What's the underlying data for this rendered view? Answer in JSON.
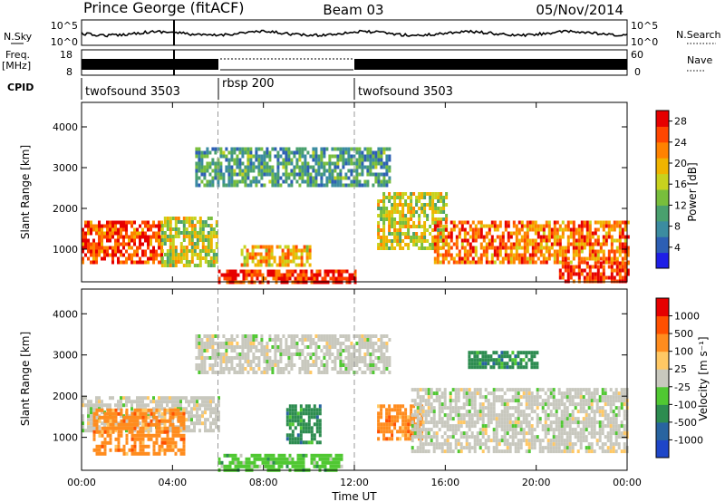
{
  "header": {
    "station": "Prince George (fitACF)",
    "beam": "Beam 03",
    "date": "05/Nov/2014"
  },
  "top_panels": {
    "nsky_label": "N.Sky",
    "nsky_ticks": [
      "10^5",
      "10^0"
    ],
    "nsearch_label": "N.Search",
    "nsearch_ticks": [
      "10^5",
      "10^0"
    ],
    "freq_label": "Freq.",
    "freq_unit": "[MHz]",
    "freq_ticks": [
      "18",
      "8"
    ],
    "nave_label": "Nave",
    "nave_ticks": [
      "60",
      "0"
    ],
    "cpid_label": "CPID",
    "cpid_segments": [
      {
        "name": "twofsound 3503",
        "start_hour": 0,
        "end_hour": 6
      },
      {
        "name": "rbsp 200",
        "start_hour": 6,
        "end_hour": 12
      },
      {
        "name": "twofsound 3503",
        "start_hour": 12,
        "end_hour": 24
      }
    ]
  },
  "chart_data": [
    {
      "type": "heatmap",
      "name": "power",
      "ylabel": "Slant Range [km]",
      "yticks": [
        1000,
        2000,
        3000,
        4000
      ],
      "ylim": [
        200,
        4600
      ],
      "xlim_hours": [
        0,
        24
      ],
      "colorbar": {
        "label": "Power [dB]",
        "ticks": [
          "4",
          "8",
          "12",
          "16",
          "20",
          "24",
          "28"
        ],
        "range": [
          0,
          30
        ],
        "colors": [
          "#1e1ee6",
          "#2d5fb4",
          "#3c8ca0",
          "#4aa06e",
          "#78be3c",
          "#c8d21e",
          "#f0b400",
          "#ff8200",
          "#ff4600",
          "#e60000"
        ]
      },
      "bands": [
        {
          "t0": 0.0,
          "t1": 3.5,
          "r0": 700,
          "r1": 1700,
          "level": 0.9
        },
        {
          "t0": 3.5,
          "t1": 6.0,
          "r0": 600,
          "r1": 1800,
          "level": 0.55
        },
        {
          "t0": 5.0,
          "t1": 13.5,
          "r0": 2600,
          "r1": 3500,
          "level": 0.3
        },
        {
          "t0": 6.0,
          "t1": 12.0,
          "r0": 200,
          "r1": 500,
          "level": 0.95
        },
        {
          "t0": 7.0,
          "t1": 10.0,
          "r0": 600,
          "r1": 1100,
          "level": 0.7
        },
        {
          "t0": 13.0,
          "t1": 16.0,
          "r0": 1000,
          "r1": 2400,
          "level": 0.55
        },
        {
          "t0": 15.5,
          "t1": 24.0,
          "r0": 700,
          "r1": 1700,
          "level": 0.8
        },
        {
          "t0": 21.0,
          "t1": 24.0,
          "r0": 250,
          "r1": 700,
          "level": 0.95
        }
      ]
    },
    {
      "type": "heatmap",
      "name": "velocity",
      "ylabel": "Slant Range [km]",
      "yticks": [
        1000,
        2000,
        3000,
        4000
      ],
      "ylim": [
        200,
        4600
      ],
      "xlim_hours": [
        0,
        24
      ],
      "colorbar": {
        "label": "Velocity [m s⁻¹]",
        "ticks": [
          "1000",
          "500",
          "100",
          "25",
          "-25",
          "-100",
          "-500",
          "-1000"
        ],
        "colors": [
          "#1e46c8",
          "#2864a0",
          "#2d8c50",
          "#50c832",
          "#c8c8be",
          "#ffc864",
          "#ff8c1e",
          "#ff5000",
          "#e60000"
        ]
      },
      "bands": [
        {
          "t0": 0.0,
          "t1": 6.0,
          "r0": 1200,
          "r1": 2000,
          "color_index": 4
        },
        {
          "t0": 0.5,
          "t1": 4.5,
          "r0": 600,
          "r1": 1700,
          "color_index": 6
        },
        {
          "t0": 5.0,
          "t1": 13.5,
          "r0": 2600,
          "r1": 3500,
          "color_index": 4
        },
        {
          "t0": 6.0,
          "t1": 11.5,
          "r0": 200,
          "r1": 600,
          "color_index": 3
        },
        {
          "t0": 9.0,
          "t1": 10.5,
          "r0": 900,
          "r1": 1800,
          "color_index": 2
        },
        {
          "t0": 13.0,
          "t1": 15.0,
          "r0": 1000,
          "r1": 1800,
          "color_index": 6
        },
        {
          "t0": 14.5,
          "t1": 24.0,
          "r0": 700,
          "r1": 2200,
          "color_index": 4
        },
        {
          "t0": 17.0,
          "t1": 20.0,
          "r0": 2700,
          "r1": 3100,
          "color_index": 2
        }
      ]
    }
  ],
  "x_axis": {
    "label": "Time UT",
    "ticks": [
      "00:00",
      "04:00",
      "08:00",
      "12:00",
      "16:00",
      "20:00",
      "00:00"
    ]
  }
}
